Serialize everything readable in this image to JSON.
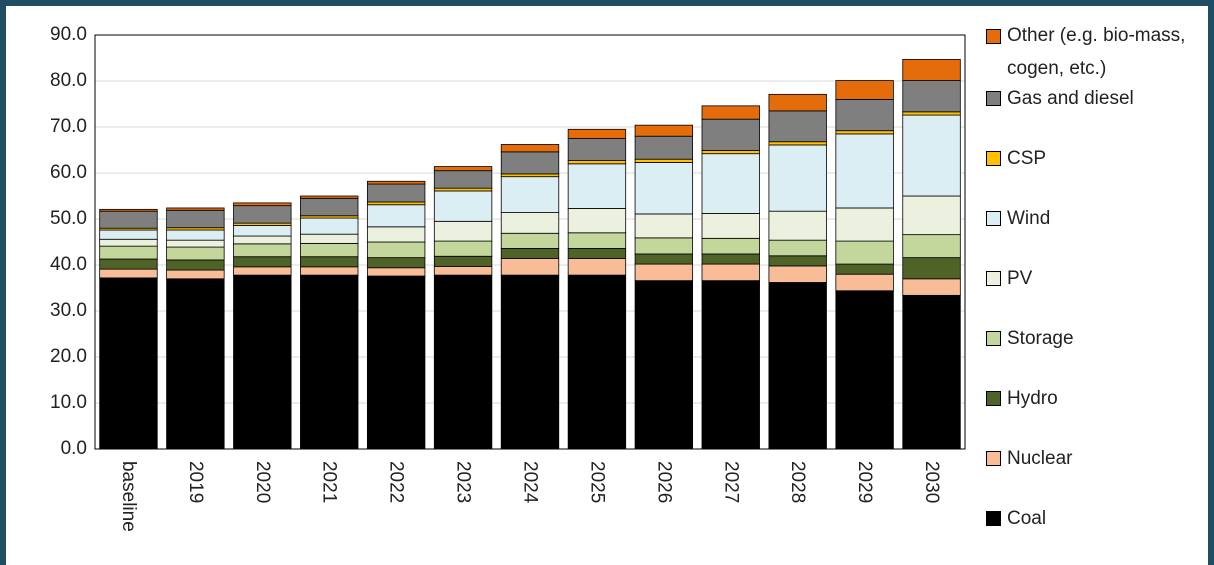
{
  "chart_data": {
    "type": "stacked_bar",
    "categories": [
      "baseline",
      "2019",
      "2020",
      "2021",
      "2022",
      "2023",
      "2024",
      "2025",
      "2026",
      "2027",
      "2028",
      "2029",
      "2030"
    ],
    "series": [
      {
        "name": "Coal",
        "color": "#000000",
        "values": [
          37.2,
          37.0,
          37.8,
          37.8,
          37.6,
          37.8,
          37.8,
          37.8,
          36.6,
          36.6,
          36.2,
          34.4,
          33.4
        ]
      },
      {
        "name": "Nuclear",
        "color": "#f8bd96",
        "values": [
          1.9,
          1.9,
          1.8,
          1.8,
          1.8,
          1.9,
          3.6,
          3.6,
          3.6,
          3.6,
          3.6,
          3.6,
          3.6
        ]
      },
      {
        "name": "Hydro",
        "color": "#4f6228",
        "values": [
          2.2,
          2.2,
          2.2,
          2.2,
          2.2,
          2.2,
          2.2,
          2.2,
          2.2,
          2.2,
          2.2,
          2.2,
          4.6
        ]
      },
      {
        "name": "Storage",
        "color": "#c3d69b",
        "values": [
          2.8,
          2.8,
          2.8,
          2.9,
          3.4,
          3.3,
          3.3,
          3.4,
          3.5,
          3.4,
          3.4,
          5.0,
          5.0
        ]
      },
      {
        "name": "PV",
        "color": "#ebf1de",
        "values": [
          1.5,
          1.5,
          1.7,
          2.0,
          3.3,
          4.3,
          4.5,
          5.3,
          5.2,
          5.4,
          6.3,
          7.2,
          8.4
        ]
      },
      {
        "name": "Wind",
        "color": "#dbeef4",
        "values": [
          2.0,
          2.2,
          2.3,
          3.5,
          4.8,
          6.6,
          7.8,
          9.7,
          11.2,
          13.0,
          14.4,
          16.1,
          17.6
        ]
      },
      {
        "name": "CSP",
        "color": "#ffc000",
        "values": [
          0.4,
          0.5,
          0.5,
          0.5,
          0.6,
          0.6,
          0.6,
          0.7,
          0.7,
          0.7,
          0.7,
          0.7,
          0.7
        ]
      },
      {
        "name": "Gas and diesel",
        "color": "#7f7f7f",
        "values": [
          3.7,
          3.8,
          3.8,
          3.8,
          3.9,
          3.8,
          4.8,
          4.8,
          5.0,
          6.8,
          6.7,
          6.8,
          6.8
        ]
      },
      {
        "name": "Other (e.g. bio-mass, cogen, etc.)",
        "color": "#e46c0a",
        "values": [
          0.4,
          0.5,
          0.6,
          0.5,
          0.6,
          0.9,
          1.6,
          2.0,
          2.4,
          2.9,
          3.6,
          4.1,
          4.6
        ]
      }
    ],
    "ylim": [
      0,
      90
    ],
    "yticks": [
      {
        "value": 0,
        "label": "0.0"
      },
      {
        "value": 10,
        "label": "10.0"
      },
      {
        "value": 20,
        "label": "20.0"
      },
      {
        "value": 30,
        "label": "30.0"
      },
      {
        "value": 40,
        "label": "40.0"
      },
      {
        "value": 50,
        "label": "50.0"
      },
      {
        "value": 60,
        "label": "60.0"
      },
      {
        "value": 70,
        "label": "70.0"
      },
      {
        "value": 80,
        "label": "80.0"
      },
      {
        "value": 90,
        "label": "90.0"
      }
    ],
    "grid": true,
    "legend": "right"
  }
}
